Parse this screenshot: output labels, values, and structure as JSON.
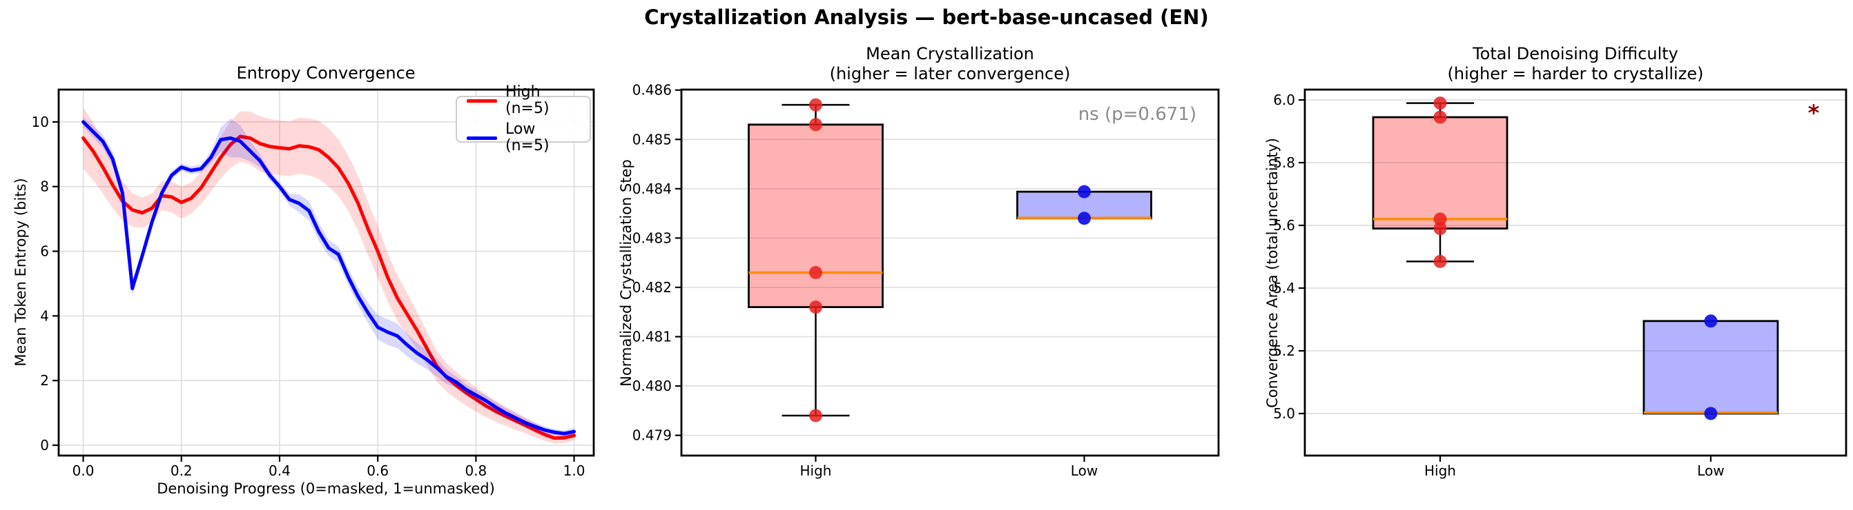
{
  "figure": {
    "title": "Crystallization Analysis — bert-base-uncased (EN)"
  },
  "legend": {
    "items": [
      {
        "label": "High (n=5)",
        "color": "#ff0000"
      },
      {
        "label": "Low (n=5)",
        "color": "#0000ff"
      }
    ]
  },
  "colors": {
    "high_line": "#ff0000",
    "low_line": "#0000ff",
    "high_box_fill": "rgba(255,0,0,0.30)",
    "low_box_fill": "rgba(0,0,255,0.30)",
    "median": "#ff8c00",
    "ns_annotation": "#8a8a8a",
    "significance_star": "#8b0000"
  },
  "chart_data": [
    {
      "type": "line",
      "title": "Entropy Convergence",
      "xlabel": "Denoising Progress (0=masked, 1=unmasked)",
      "ylabel": "Mean Token Entropy (bits)",
      "xlim": [
        -0.05,
        1.04
      ],
      "ylim": [
        -0.32,
        11.0
      ],
      "grid": "both",
      "legend_position": "upper right",
      "xticks": {
        "values": [
          0,
          0.2,
          0.4,
          0.6,
          0.8,
          1.0
        ],
        "labels": [
          "0.0",
          "0.2",
          "0.4",
          "0.6",
          "0.8",
          "1.0"
        ]
      },
      "yticks": {
        "values": [
          0,
          2,
          4,
          6,
          8,
          10
        ],
        "labels": [
          "0",
          "2",
          "4",
          "6",
          "8",
          "10"
        ]
      },
      "x": [
        0,
        0.02,
        0.04,
        0.06,
        0.08,
        0.1,
        0.12,
        0.14,
        0.16,
        0.18,
        0.2,
        0.22,
        0.24,
        0.26,
        0.28,
        0.3,
        0.32,
        0.34,
        0.36,
        0.38,
        0.4,
        0.42,
        0.44,
        0.46,
        0.48,
        0.5,
        0.52,
        0.54,
        0.56,
        0.58,
        0.6,
        0.62,
        0.64,
        0.66,
        0.68,
        0.7,
        0.72,
        0.74,
        0.76,
        0.78,
        0.8,
        0.82,
        0.84,
        0.86,
        0.88,
        0.9,
        0.92,
        0.94,
        0.96,
        0.98,
        1
      ],
      "series": [
        {
          "name": "High (n=5)",
          "color": "#ff0000",
          "band_color": "rgba(255,0,0,0.15)",
          "mean": [
            9.5,
            9.1,
            8.6,
            8.05,
            7.55,
            7.28,
            7.19,
            7.33,
            7.72,
            7.68,
            7.51,
            7.64,
            7.96,
            8.43,
            8.9,
            9.3,
            9.55,
            9.5,
            9.33,
            9.24,
            9.2,
            9.17,
            9.26,
            9.23,
            9.14,
            8.9,
            8.58,
            8.1,
            7.48,
            6.7,
            6.0,
            5.2,
            4.55,
            4.05,
            3.55,
            3.0,
            2.45,
            2.1,
            1.85,
            1.62,
            1.42,
            1.22,
            1.05,
            0.9,
            0.76,
            0.62,
            0.47,
            0.33,
            0.22,
            0.23,
            0.3
          ],
          "band_halfwidth": [
            0.95,
            0.9,
            0.82,
            0.72,
            0.6,
            0.52,
            0.48,
            0.45,
            0.45,
            0.48,
            0.5,
            0.48,
            0.5,
            0.58,
            0.65,
            0.72,
            0.78,
            0.82,
            0.85,
            0.85,
            0.85,
            0.85,
            0.87,
            0.88,
            0.9,
            0.9,
            0.88,
            0.85,
            0.85,
            0.82,
            0.8,
            0.75,
            0.7,
            0.65,
            0.58,
            0.52,
            0.47,
            0.44,
            0.42,
            0.4,
            0.38,
            0.35,
            0.33,
            0.3,
            0.28,
            0.25,
            0.22,
            0.2,
            0.17,
            0.16,
            0.15
          ]
        },
        {
          "name": "Low (n=5)",
          "color": "#0000ff",
          "band_color": "rgba(0,0,255,0.15)",
          "mean": [
            10.0,
            9.7,
            9.4,
            8.85,
            7.8,
            4.85,
            5.85,
            6.9,
            7.8,
            8.35,
            8.6,
            8.5,
            8.55,
            8.9,
            9.45,
            9.5,
            9.4,
            9.1,
            8.8,
            8.35,
            8.0,
            7.6,
            7.48,
            7.25,
            6.6,
            6.1,
            5.9,
            5.2,
            4.6,
            4.1,
            3.65,
            3.5,
            3.38,
            3.1,
            2.85,
            2.65,
            2.4,
            2.12,
            1.95,
            1.72,
            1.55,
            1.38,
            1.18,
            1.0,
            0.85,
            0.7,
            0.58,
            0.47,
            0.4,
            0.36,
            0.42
          ],
          "band_halfwidth": [
            0.15,
            0.18,
            0.2,
            0.22,
            0.25,
            0.22,
            0.18,
            0.15,
            0.14,
            0.13,
            0.12,
            0.12,
            0.13,
            0.18,
            0.38,
            0.6,
            0.5,
            0.32,
            0.2,
            0.15,
            0.15,
            0.18,
            0.28,
            0.3,
            0.28,
            0.25,
            0.25,
            0.25,
            0.28,
            0.32,
            0.38,
            0.4,
            0.38,
            0.35,
            0.32,
            0.3,
            0.28,
            0.22,
            0.18,
            0.16,
            0.16,
            0.16,
            0.16,
            0.15,
            0.14,
            0.13,
            0.12,
            0.11,
            0.1,
            0.1,
            0.12
          ]
        }
      ]
    },
    {
      "type": "box",
      "title": "Mean Crystallization\n(higher = later convergence)",
      "ylabel": "Normalized Crystallization Step",
      "ylim": [
        0.47859,
        0.48601
      ],
      "yticks": {
        "values": [
          0.479,
          0.48,
          0.481,
          0.482,
          0.483,
          0.484,
          0.485,
          0.486
        ],
        "labels": [
          "0.479",
          "0.480",
          "0.481",
          "0.482",
          "0.483",
          "0.484",
          "0.485",
          "0.486"
        ]
      },
      "categories": [
        "High",
        "Low"
      ],
      "annotation": {
        "text": "ns (p=0.671)",
        "color": "#8a8a8a"
      },
      "groups": [
        {
          "label": "High",
          "box_fill": "rgba(255,0,0,0.30)",
          "point_color": "rgba(232,30,30,0.85)",
          "q1": 0.4816,
          "median": 0.4823,
          "q3": 0.4853,
          "whisker_low": 0.4794,
          "whisker_high": 0.4857,
          "points": [
            0.4857,
            0.4853,
            0.4823,
            0.4816,
            0.4794
          ]
        },
        {
          "label": "Low",
          "box_fill": "rgba(0,0,255,0.30)",
          "point_color": "rgba(10,10,230,0.9)",
          "q1": 0.4834,
          "median": 0.48341,
          "q3": 0.48394,
          "whisker_low": 0.4834,
          "whisker_high": 0.48394,
          "points": [
            0.48394,
            0.4834
          ]
        }
      ]
    },
    {
      "type": "box",
      "title": "Total Denoising Difficulty\n(higher = harder to crystallize)",
      "ylabel": "Convergence Area (total uncertainty)",
      "ylim": [
        4.866,
        6.033
      ],
      "yticks": {
        "values": [
          5.0,
          5.2,
          5.4,
          5.6,
          5.8,
          6.0
        ],
        "labels": [
          "5.0",
          "5.2",
          "5.4",
          "5.6",
          "5.8",
          "6.0"
        ]
      },
      "categories": [
        "High",
        "Low"
      ],
      "annotation": {
        "text": "*",
        "color": "#8b0000"
      },
      "groups": [
        {
          "label": "High",
          "box_fill": "rgba(255,0,0,0.30)",
          "point_color": "rgba(232,30,30,0.85)",
          "q1": 5.59,
          "median": 5.62,
          "q3": 5.945,
          "whisker_low": 5.485,
          "whisker_high": 5.99,
          "points": [
            5.99,
            5.945,
            5.62,
            5.59,
            5.485
          ]
        },
        {
          "label": "Low",
          "box_fill": "rgba(0,0,255,0.30)",
          "point_color": "rgba(10,10,230,0.9)",
          "q1": 5.0,
          "median": 5.003,
          "q3": 5.295,
          "whisker_low": 5.0,
          "whisker_high": 5.295,
          "points": [
            5.295,
            5.0
          ]
        }
      ]
    }
  ]
}
